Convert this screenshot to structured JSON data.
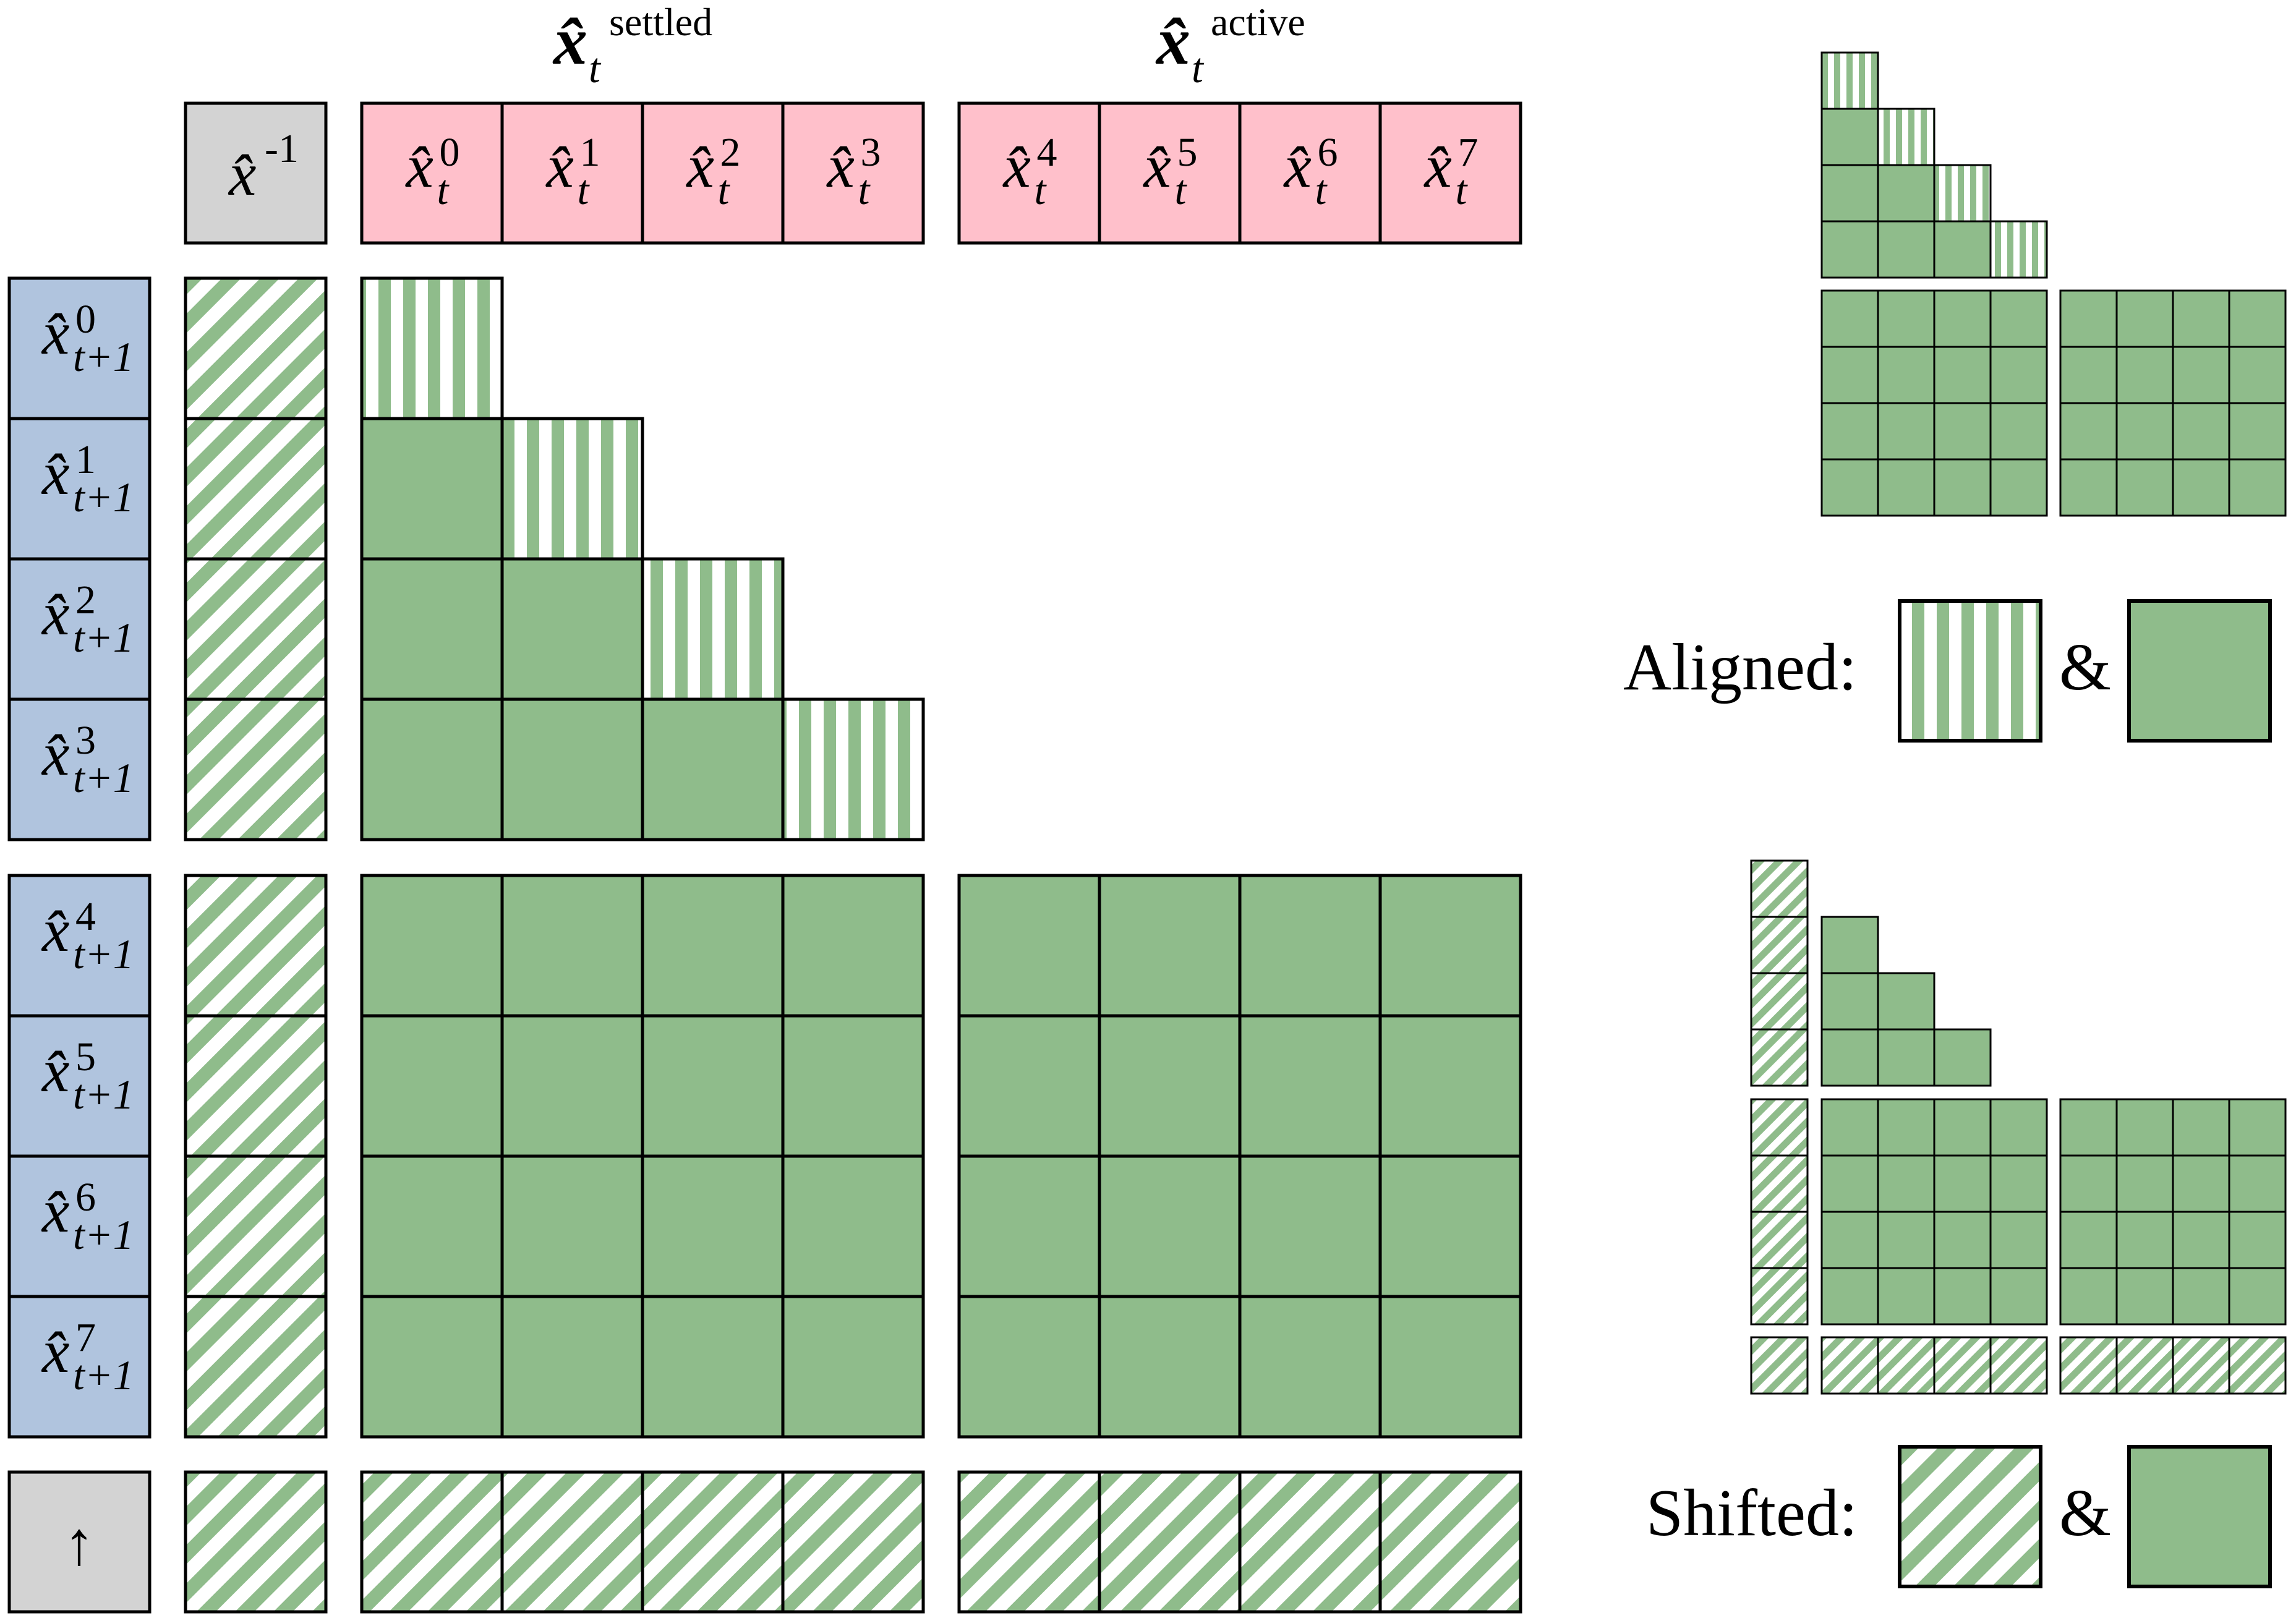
{
  "header": {
    "settled": {
      "symbol": "x̂",
      "sub": "t",
      "sup": "settled"
    },
    "active": {
      "symbol": "x̂",
      "sub": "t",
      "sup": "active"
    }
  },
  "top_row": {
    "prev": {
      "base": "x̂",
      "sup": "-1"
    },
    "settled_cells": [
      {
        "base": "x̂",
        "sub": "t",
        "sup": "0"
      },
      {
        "base": "x̂",
        "sub": "t",
        "sup": "1"
      },
      {
        "base": "x̂",
        "sub": "t",
        "sup": "2"
      },
      {
        "base": "x̂",
        "sub": "t",
        "sup": "3"
      }
    ],
    "active_cells": [
      {
        "base": "x̂",
        "sub": "t",
        "sup": "4"
      },
      {
        "base": "x̂",
        "sub": "t",
        "sup": "5"
      },
      {
        "base": "x̂",
        "sub": "t",
        "sup": "6"
      },
      {
        "base": "x̂",
        "sub": "t",
        "sup": "7"
      }
    ]
  },
  "left_column": [
    {
      "base": "x̂",
      "sub": "t+1",
      "sup": "0"
    },
    {
      "base": "x̂",
      "sub": "t+1",
      "sup": "1"
    },
    {
      "base": "x̂",
      "sub": "t+1",
      "sup": "2"
    },
    {
      "base": "x̂",
      "sub": "t+1",
      "sup": "3"
    },
    {
      "base": "x̂",
      "sub": "t+1",
      "sup": "4"
    },
    {
      "base": "x̂",
      "sub": "t+1",
      "sup": "5"
    },
    {
      "base": "x̂",
      "sub": "t+1",
      "sup": "6"
    },
    {
      "base": "x̂",
      "sub": "t+1",
      "sup": "7"
    }
  ],
  "bottom_left_symbol": "↑",
  "legend": {
    "aligned": {
      "label": "Aligned:",
      "connector": "&"
    },
    "shifted": {
      "label": "Shifted:",
      "connector": "&"
    }
  },
  "colors": {
    "green": "#8fbc8b",
    "pink": "#ffc0cb",
    "blue": "#b0c4de",
    "gray": "#d3d3d3",
    "stroke": "#000000"
  }
}
